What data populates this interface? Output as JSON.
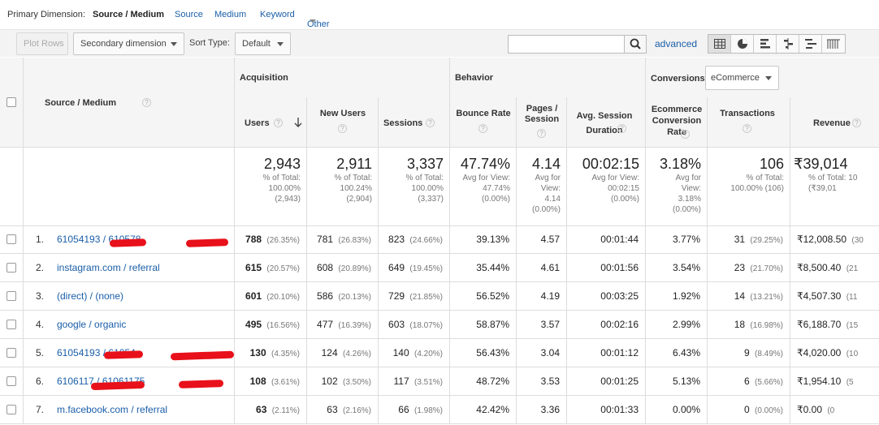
{
  "dimbar": {
    "label": "Primary Dimension:",
    "current": "Source / Medium",
    "links": [
      "Source",
      "Medium",
      "Keyword"
    ],
    "other": "Other"
  },
  "toolbar": {
    "plot_rows": "Plot Rows",
    "secondary": "Secondary dimension",
    "sort_label": "Sort Type:",
    "sort_value": "Default",
    "search_placeholder": "",
    "advanced": "advanced",
    "view_icons": [
      "table-view-icon",
      "pie-view-icon",
      "performance-view-icon",
      "comparison-view-icon",
      "term-cloud-icon",
      "pivot-view-icon"
    ]
  },
  "header": {
    "source_medium": "Source / Medium",
    "acquisition": "Acquisition",
    "behavior": "Behavior",
    "conversions": "Conversions",
    "conversions_select": "eCommerce",
    "columns": [
      "Users",
      "New Users",
      "Sessions",
      "Bounce Rate",
      "Pages / Session",
      "Avg. Session Duration",
      "Ecommerce Conversion Rate",
      "Transactions",
      "Revenue"
    ]
  },
  "totals": [
    {
      "value": "2,943",
      "sub1": "% of Total:",
      "sub2": "100.00%",
      "sub3": "(2,943)",
      "sub4": ""
    },
    {
      "value": "2,911",
      "sub1": "% of Total:",
      "sub2": "100.24%",
      "sub3": "(2,904)",
      "sub4": ""
    },
    {
      "value": "3,337",
      "sub1": "% of Total:",
      "sub2": "100.00%",
      "sub3": "(3,337)",
      "sub4": ""
    },
    {
      "value": "47.74%",
      "sub1": "Avg for View:",
      "sub2": "47.74%",
      "sub3": "(0.00%)",
      "sub4": ""
    },
    {
      "value": "4.14",
      "sub1": "Avg for",
      "sub2": "View:",
      "sub3": "4.14",
      "sub4": "(0.00%)"
    },
    {
      "value": "00:02:15",
      "sub1": "Avg for View:",
      "sub2": "00:02:15",
      "sub3": "(0.00%)",
      "sub4": ""
    },
    {
      "value": "3.18%",
      "sub1": "Avg for",
      "sub2": "View:",
      "sub3": "3.18%",
      "sub4": "(0.00%)"
    },
    {
      "value": "106",
      "sub1": "% of Total:",
      "sub2": "100.00% (106)",
      "sub3": "",
      "sub4": ""
    },
    {
      "value": "₹39,014",
      "sub1": "% of Total: 10",
      "sub2": "(₹39,01",
      "sub3": "",
      "sub4": ""
    }
  ],
  "rows": [
    {
      "num": "1.",
      "source": "61054193 / 610578",
      "users": "788",
      "users_pct": "(26.35%)",
      "new_users": "781",
      "new_users_pct": "(26.83%)",
      "sessions": "823",
      "sessions_pct": "(24.66%)",
      "bounce": "39.13%",
      "pages": "4.57",
      "duration": "00:01:44",
      "conv": "3.77%",
      "trans": "31",
      "trans_pct": "(29.25%)",
      "revenue": "₹12,008.50",
      "revenue_pct": "(30"
    },
    {
      "num": "2.",
      "source": "instagram.com / referral",
      "users": "615",
      "users_pct": "(20.57%)",
      "new_users": "608",
      "new_users_pct": "(20.89%)",
      "sessions": "649",
      "sessions_pct": "(19.45%)",
      "bounce": "35.44%",
      "pages": "4.61",
      "duration": "00:01:56",
      "conv": "3.54%",
      "trans": "23",
      "trans_pct": "(21.70%)",
      "revenue": "₹8,500.40",
      "revenue_pct": "(21"
    },
    {
      "num": "3.",
      "source": "(direct) / (none)",
      "users": "601",
      "users_pct": "(20.10%)",
      "new_users": "586",
      "new_users_pct": "(20.13%)",
      "sessions": "729",
      "sessions_pct": "(21.85%)",
      "bounce": "56.52%",
      "pages": "4.19",
      "duration": "00:03:25",
      "conv": "1.92%",
      "trans": "14",
      "trans_pct": "(13.21%)",
      "revenue": "₹4,507.30",
      "revenue_pct": "(11"
    },
    {
      "num": "4.",
      "source": "google / organic",
      "users": "495",
      "users_pct": "(16.56%)",
      "new_users": "477",
      "new_users_pct": "(16.39%)",
      "sessions": "603",
      "sessions_pct": "(18.07%)",
      "bounce": "58.87%",
      "pages": "3.57",
      "duration": "00:02:16",
      "conv": "2.99%",
      "trans": "18",
      "trans_pct": "(16.98%)",
      "revenue": "₹6,188.70",
      "revenue_pct": "(15"
    },
    {
      "num": "5.",
      "source": "61054193 / 61054",
      "users": "130",
      "users_pct": "(4.35%)",
      "new_users": "124",
      "new_users_pct": "(4.26%)",
      "sessions": "140",
      "sessions_pct": "(4.20%)",
      "bounce": "56.43%",
      "pages": "3.04",
      "duration": "00:01:12",
      "conv": "6.43%",
      "trans": "9",
      "trans_pct": "(8.49%)",
      "revenue": "₹4,020.00",
      "revenue_pct": "(10"
    },
    {
      "num": "6.",
      "source": "6106117 / 61061175",
      "users": "108",
      "users_pct": "(3.61%)",
      "new_users": "102",
      "new_users_pct": "(3.50%)",
      "sessions": "117",
      "sessions_pct": "(3.51%)",
      "bounce": "48.72%",
      "pages": "3.53",
      "duration": "00:01:25",
      "conv": "5.13%",
      "trans": "6",
      "trans_pct": "(5.66%)",
      "revenue": "₹1,954.10",
      "revenue_pct": "(5"
    },
    {
      "num": "7.",
      "source": "m.facebook.com / referral",
      "users": "63",
      "users_pct": "(2.11%)",
      "new_users": "63",
      "new_users_pct": "(2.16%)",
      "sessions": "66",
      "sessions_pct": "(1.98%)",
      "bounce": "42.42%",
      "pages": "3.36",
      "duration": "00:01:33",
      "conv": "0.00%",
      "trans": "0",
      "trans_pct": "(0.00%)",
      "revenue": "₹0.00",
      "revenue_pct": "(0"
    }
  ]
}
